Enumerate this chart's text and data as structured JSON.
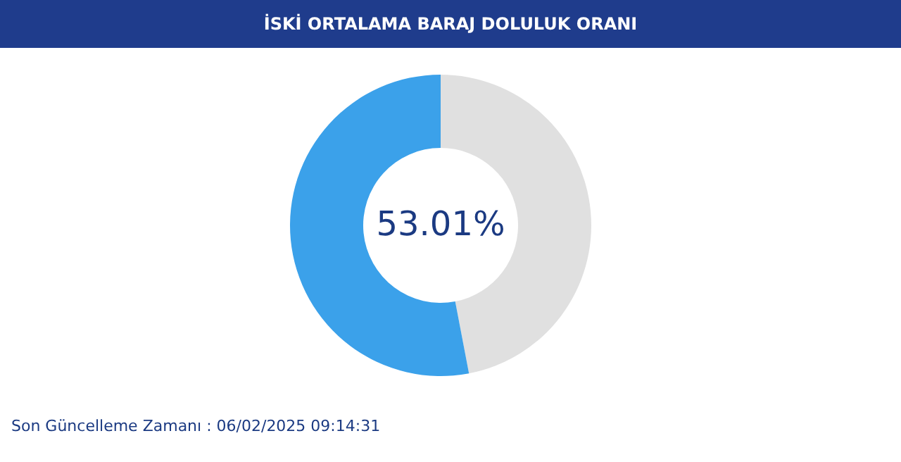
{
  "chart_data": {
    "type": "donut",
    "title": "İSKİ ORTALAMA BARAJ DOLULUK ORANI",
    "categories": [
      null,
      null
    ],
    "values": [
      46.99,
      53.01
    ],
    "colors": [
      "#e0e0e0",
      "#3ba1ea"
    ],
    "annotations": [
      "53.01%",
      "Son Güncelleme Zamanı : 06/02/2025 09:14:31"
    ],
    "legend": false
  }
}
